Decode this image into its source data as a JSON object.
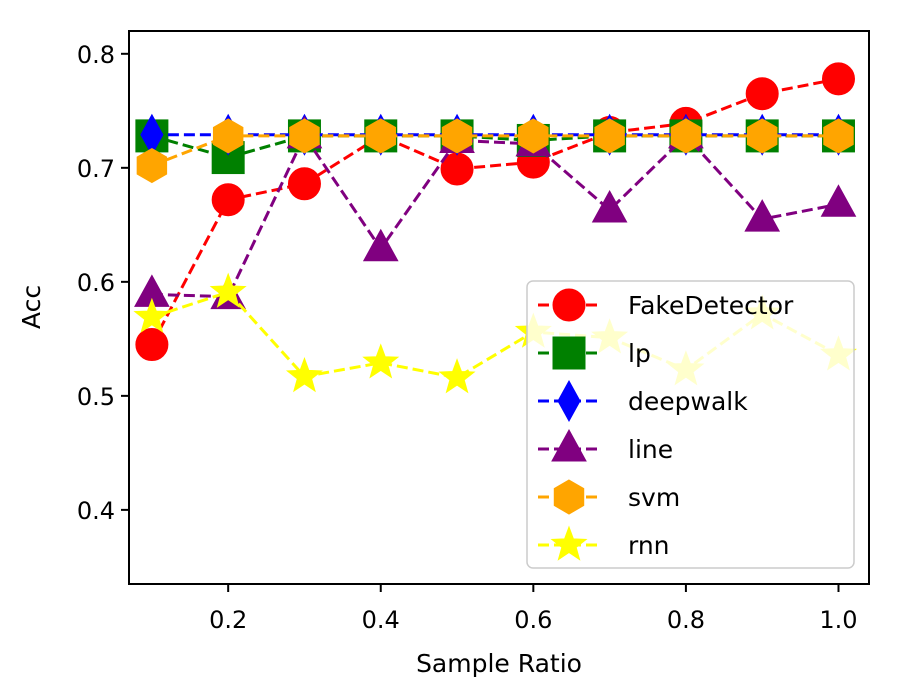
{
  "chart_data": {
    "type": "line",
    "title": "",
    "xlabel": "Sample Ratio",
    "ylabel": "Acc",
    "xlim": [
      0.07,
      1.04
    ],
    "ylim": [
      0.335,
      0.82
    ],
    "xticks": [
      0.2,
      0.4,
      0.6,
      0.8,
      1.0
    ],
    "xtick_labels": [
      "0.2",
      "0.4",
      "0.6",
      "0.8",
      "1.0"
    ],
    "yticks": [
      0.4,
      0.5,
      0.6,
      0.7,
      0.8
    ],
    "ytick_labels": [
      "0.4",
      "0.5",
      "0.6",
      "0.7",
      "0.8"
    ],
    "grid": false,
    "legend_position": "lower-right",
    "x": [
      0.1,
      0.2,
      0.3,
      0.4,
      0.5,
      0.6,
      0.7,
      0.8,
      0.9,
      1.0
    ],
    "series": [
      {
        "name": "FakeDetector",
        "color": "#ff0000",
        "marker": "circle",
        "values": [
          0.545,
          0.672,
          0.686,
          0.728,
          0.699,
          0.705,
          0.731,
          0.739,
          0.765,
          0.778
        ]
      },
      {
        "name": "lp",
        "color": "#008000",
        "marker": "square",
        "values": [
          0.728,
          0.709,
          0.728,
          0.728,
          0.728,
          0.724,
          0.728,
          0.728,
          0.728,
          0.728
        ]
      },
      {
        "name": "deepwalk",
        "color": "#0000ff",
        "marker": "diamond",
        "values": [
          0.729,
          0.729,
          0.729,
          0.729,
          0.729,
          0.729,
          0.729,
          0.729,
          0.729,
          0.729
        ]
      },
      {
        "name": "line",
        "color": "#800080",
        "marker": "triangle",
        "values": [
          0.589,
          0.587,
          0.728,
          0.629,
          0.724,
          0.721,
          0.663,
          0.728,
          0.655,
          0.668
        ]
      },
      {
        "name": "svm",
        "color": "#ffa500",
        "marker": "hexagon",
        "values": [
          0.702,
          0.728,
          0.728,
          0.728,
          0.728,
          0.728,
          0.728,
          0.728,
          0.728,
          0.728
        ]
      },
      {
        "name": "rnn",
        "color": "#ffff00",
        "marker": "star",
        "values": [
          0.569,
          0.591,
          0.517,
          0.529,
          0.516,
          0.556,
          0.551,
          0.523,
          0.572,
          0.536
        ]
      }
    ]
  }
}
